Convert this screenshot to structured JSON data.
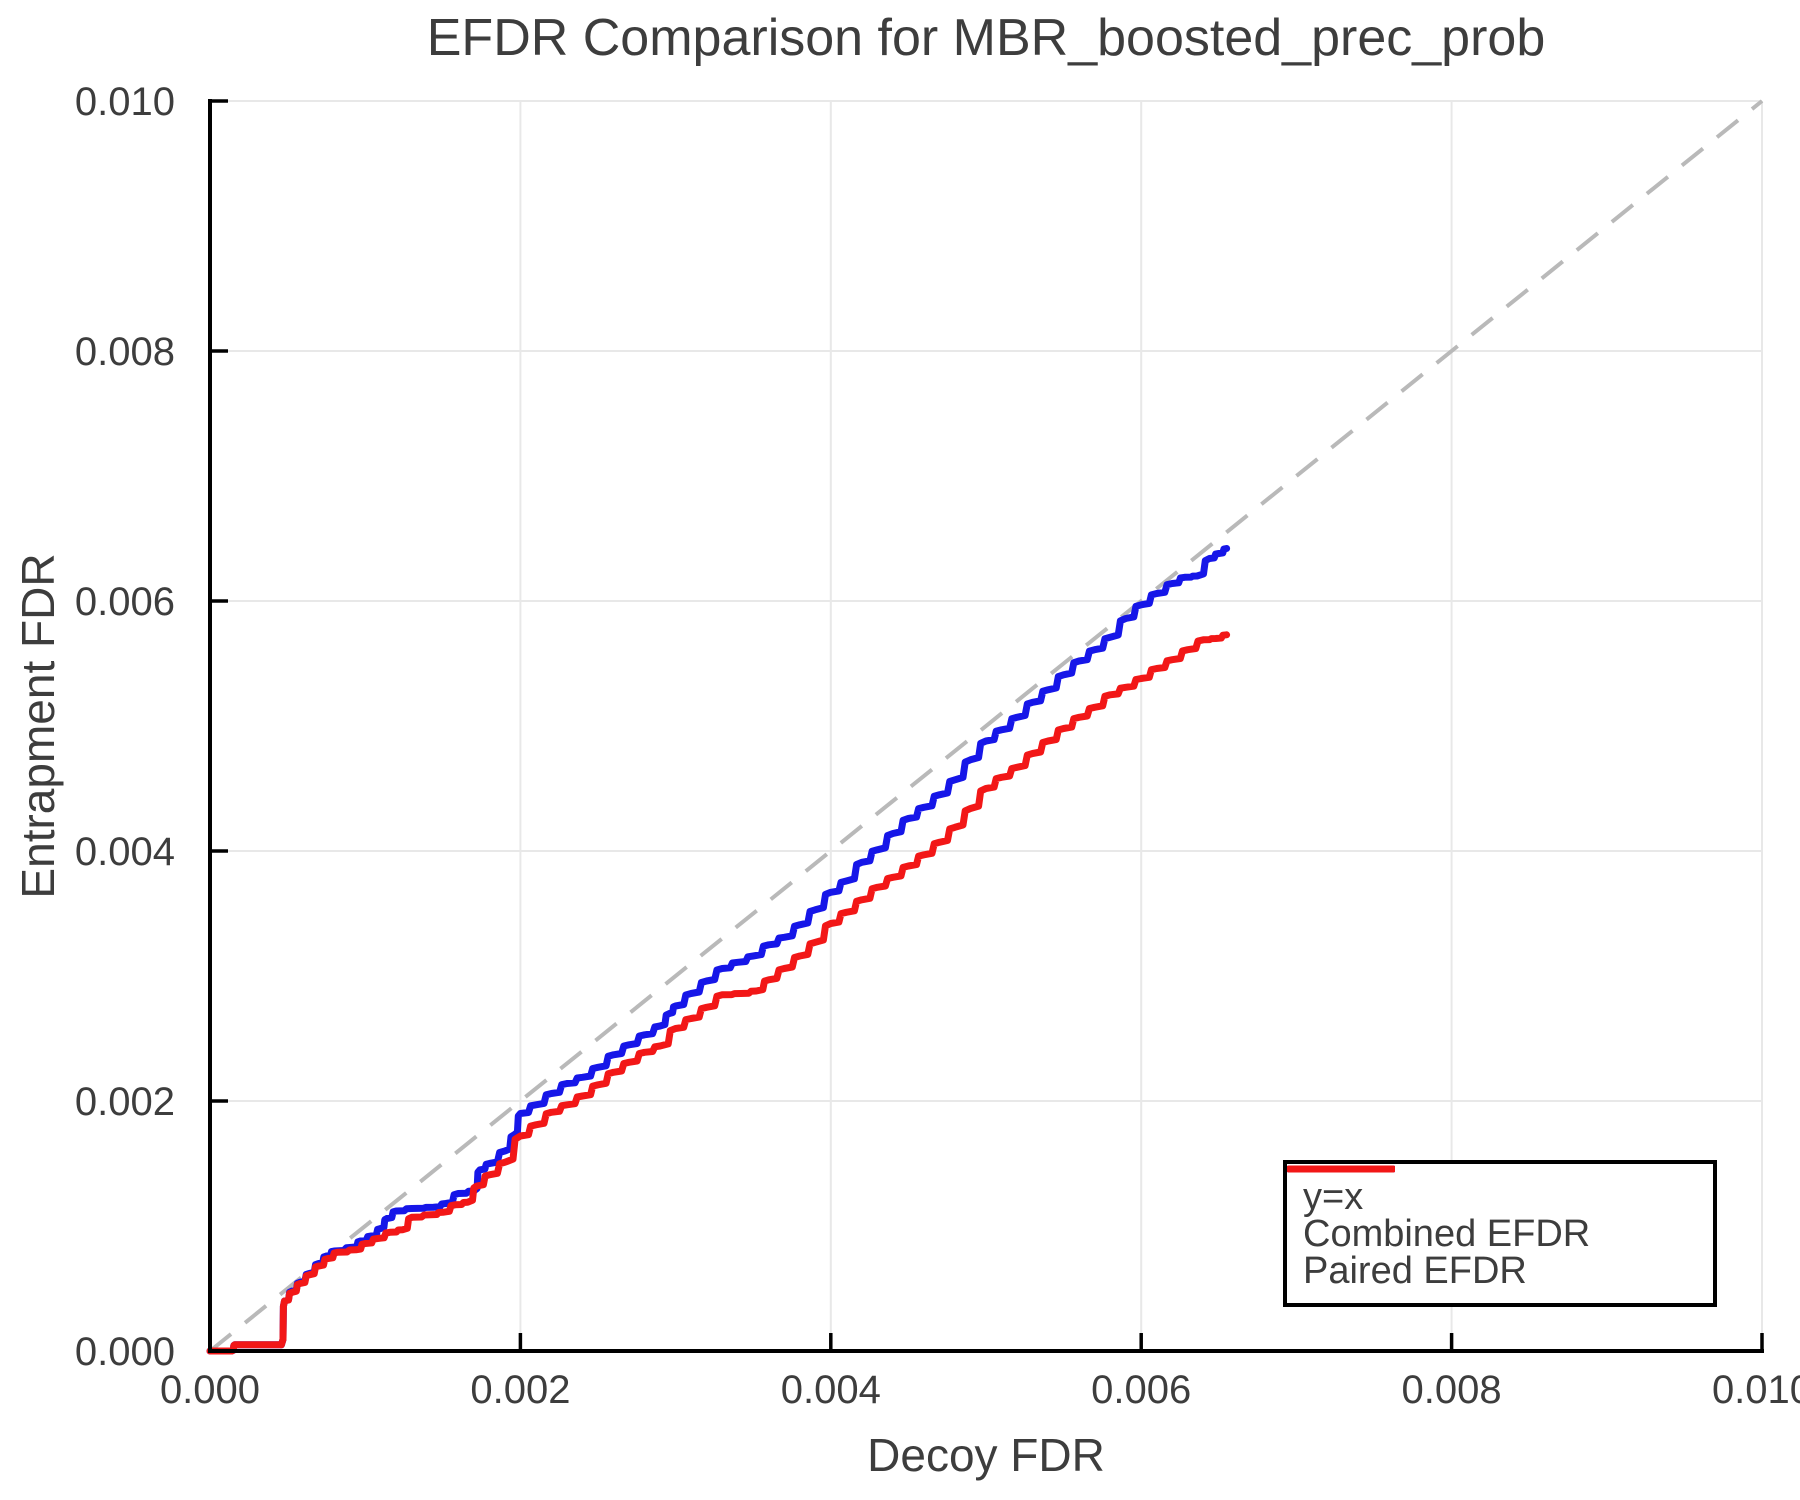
{
  "colors": {
    "background": "#ffffff",
    "text": "#3d3d3d",
    "grid": "#e8e8e8",
    "axis": "#000000",
    "reference": "#b9b9b9",
    "combined": "#1616e8",
    "paired": "#f21717"
  },
  "chart_data": {
    "type": "line",
    "title": "EFDR Comparison for MBR_boosted_prec_prob",
    "xlabel": "Decoy FDR",
    "ylabel": "Entrapment FDR",
    "xlim": [
      0.0,
      0.01
    ],
    "ylim": [
      0.0,
      0.01
    ],
    "grid": true,
    "x_ticks": {
      "values": [
        0.0,
        0.002,
        0.004,
        0.006,
        0.008,
        0.01
      ],
      "labels": [
        "0.000",
        "0.002",
        "0.004",
        "0.006",
        "0.008",
        "0.010"
      ]
    },
    "y_ticks": {
      "values": [
        0.0,
        0.002,
        0.004,
        0.006,
        0.008,
        0.01
      ],
      "labels": [
        "0.000",
        "0.002",
        "0.004",
        "0.006",
        "0.008",
        "0.010"
      ]
    },
    "reference_line": {
      "label": "y=x",
      "from": [
        0.0,
        0.0
      ],
      "to": [
        0.01,
        0.01
      ],
      "color": "#b9b9b9",
      "style": "dashed"
    },
    "series": [
      {
        "name": "Combined EFDR",
        "color": "#1616e8",
        "points": [
          [
            0.0,
            0.0
          ],
          [
            0.00014,
            0.0
          ],
          [
            0.00016,
            5e-05
          ],
          [
            0.00046,
            5e-05
          ],
          [
            0.00048,
            0.0004
          ],
          [
            0.00053,
            0.00048
          ],
          [
            0.00058,
            0.00055
          ],
          [
            0.00064,
            0.00062
          ],
          [
            0.0007,
            0.0007
          ],
          [
            0.00075,
            0.00076
          ],
          [
            0.0008,
            0.0008
          ],
          [
            0.00092,
            0.00083
          ],
          [
            0.00097,
            0.00088
          ],
          [
            0.00104,
            0.00092
          ],
          [
            0.0011,
            0.00098
          ],
          [
            0.00114,
            0.00106
          ],
          [
            0.0012,
            0.00112
          ],
          [
            0.0013,
            0.00114
          ],
          [
            0.00144,
            0.00115
          ],
          [
            0.00152,
            0.00118
          ],
          [
            0.0016,
            0.00126
          ],
          [
            0.0017,
            0.00128
          ],
          [
            0.00174,
            0.00145
          ],
          [
            0.0018,
            0.0015
          ],
          [
            0.0019,
            0.0016
          ],
          [
            0.00196,
            0.00173
          ],
          [
            0.002,
            0.0019
          ],
          [
            0.0021,
            0.00197
          ],
          [
            0.0022,
            0.00206
          ],
          [
            0.0023,
            0.00214
          ],
          [
            0.0024,
            0.00219
          ],
          [
            0.0025,
            0.00227
          ],
          [
            0.0026,
            0.00237
          ],
          [
            0.0027,
            0.00245
          ],
          [
            0.0028,
            0.00253
          ],
          [
            0.0029,
            0.0026
          ],
          [
            0.00296,
            0.0027
          ],
          [
            0.003,
            0.00276
          ],
          [
            0.0031,
            0.00286
          ],
          [
            0.0032,
            0.00296
          ],
          [
            0.0033,
            0.00306
          ],
          [
            0.0034,
            0.00311
          ],
          [
            0.0035,
            0.00316
          ],
          [
            0.0036,
            0.00325
          ],
          [
            0.0037,
            0.00331
          ],
          [
            0.0038,
            0.00341
          ],
          [
            0.0039,
            0.00353
          ],
          [
            0.004,
            0.00367
          ],
          [
            0.0041,
            0.00376
          ],
          [
            0.0042,
            0.00391
          ],
          [
            0.0043,
            0.00401
          ],
          [
            0.0044,
            0.00414
          ],
          [
            0.0045,
            0.00426
          ],
          [
            0.0046,
            0.00435
          ],
          [
            0.0047,
            0.00445
          ],
          [
            0.0048,
            0.00457
          ],
          [
            0.0049,
            0.00473
          ],
          [
            0.005,
            0.00488
          ],
          [
            0.0051,
            0.00497
          ],
          [
            0.0052,
            0.00507
          ],
          [
            0.0053,
            0.00519
          ],
          [
            0.0054,
            0.00529
          ],
          [
            0.0055,
            0.00541
          ],
          [
            0.0056,
            0.00552
          ],
          [
            0.0057,
            0.00561
          ],
          [
            0.0058,
            0.00571
          ],
          [
            0.0059,
            0.00586
          ],
          [
            0.006,
            0.00597
          ],
          [
            0.0061,
            0.00606
          ],
          [
            0.0062,
            0.00614
          ],
          [
            0.00628,
            0.00619
          ],
          [
            0.00636,
            0.0062
          ],
          [
            0.00644,
            0.00634
          ],
          [
            0.0065,
            0.00638
          ],
          [
            0.00655,
            0.00642
          ]
        ]
      },
      {
        "name": "Paired EFDR",
        "color": "#f21717",
        "points": [
          [
            0.0,
            0.0
          ],
          [
            0.00014,
            0.0
          ],
          [
            0.00016,
            5e-05
          ],
          [
            0.00046,
            5e-05
          ],
          [
            0.00048,
            0.0004
          ],
          [
            0.00053,
            0.00047
          ],
          [
            0.00058,
            0.00054
          ],
          [
            0.00064,
            0.00061
          ],
          [
            0.0007,
            0.00068
          ],
          [
            0.00076,
            0.00074
          ],
          [
            0.00082,
            0.00079
          ],
          [
            0.00094,
            0.00081
          ],
          [
            0.001,
            0.00086
          ],
          [
            0.00108,
            0.0009
          ],
          [
            0.00116,
            0.00095
          ],
          [
            0.00124,
            0.00097
          ],
          [
            0.0013,
            0.00107
          ],
          [
            0.00142,
            0.00109
          ],
          [
            0.0015,
            0.00111
          ],
          [
            0.00158,
            0.00117
          ],
          [
            0.00166,
            0.00119
          ],
          [
            0.00172,
            0.00132
          ],
          [
            0.0018,
            0.00141
          ],
          [
            0.0019,
            0.00151
          ],
          [
            0.002,
            0.00172
          ],
          [
            0.0021,
            0.00181
          ],
          [
            0.0022,
            0.00191
          ],
          [
            0.0023,
            0.00197
          ],
          [
            0.0024,
            0.00204
          ],
          [
            0.0025,
            0.00213
          ],
          [
            0.0026,
            0.00223
          ],
          [
            0.0027,
            0.00231
          ],
          [
            0.0028,
            0.00239
          ],
          [
            0.0029,
            0.00244
          ],
          [
            0.003,
            0.00258
          ],
          [
            0.0031,
            0.00266
          ],
          [
            0.0032,
            0.00275
          ],
          [
            0.0033,
            0.00285
          ],
          [
            0.00342,
            0.00286
          ],
          [
            0.00352,
            0.00288
          ],
          [
            0.0036,
            0.00297
          ],
          [
            0.0037,
            0.00306
          ],
          [
            0.0038,
            0.00316
          ],
          [
            0.0039,
            0.00327
          ],
          [
            0.004,
            0.00342
          ],
          [
            0.0041,
            0.00351
          ],
          [
            0.0042,
            0.00361
          ],
          [
            0.0043,
            0.00371
          ],
          [
            0.0044,
            0.00379
          ],
          [
            0.0045,
            0.00388
          ],
          [
            0.0046,
            0.00397
          ],
          [
            0.0047,
            0.00407
          ],
          [
            0.0048,
            0.00419
          ],
          [
            0.0049,
            0.00434
          ],
          [
            0.005,
            0.0045
          ],
          [
            0.0051,
            0.00459
          ],
          [
            0.0052,
            0.00467
          ],
          [
            0.0053,
            0.00478
          ],
          [
            0.0054,
            0.00488
          ],
          [
            0.0055,
            0.00498
          ],
          [
            0.0056,
            0.00507
          ],
          [
            0.0057,
            0.00515
          ],
          [
            0.0058,
            0.00525
          ],
          [
            0.0059,
            0.00531
          ],
          [
            0.006,
            0.00538
          ],
          [
            0.0061,
            0.00546
          ],
          [
            0.0062,
            0.00553
          ],
          [
            0.0063,
            0.00561
          ],
          [
            0.0064,
            0.00569
          ],
          [
            0.00648,
            0.0057
          ],
          [
            0.00655,
            0.00573
          ]
        ]
      }
    ],
    "legend": {
      "position": "bottom-right",
      "items": [
        {
          "label": "y=x",
          "color": "#b9b9b9",
          "dashed": true
        },
        {
          "label": "Combined EFDR",
          "color": "#1616e8",
          "dashed": false
        },
        {
          "label": "Paired EFDR",
          "color": "#f21717",
          "dashed": false
        }
      ]
    }
  }
}
